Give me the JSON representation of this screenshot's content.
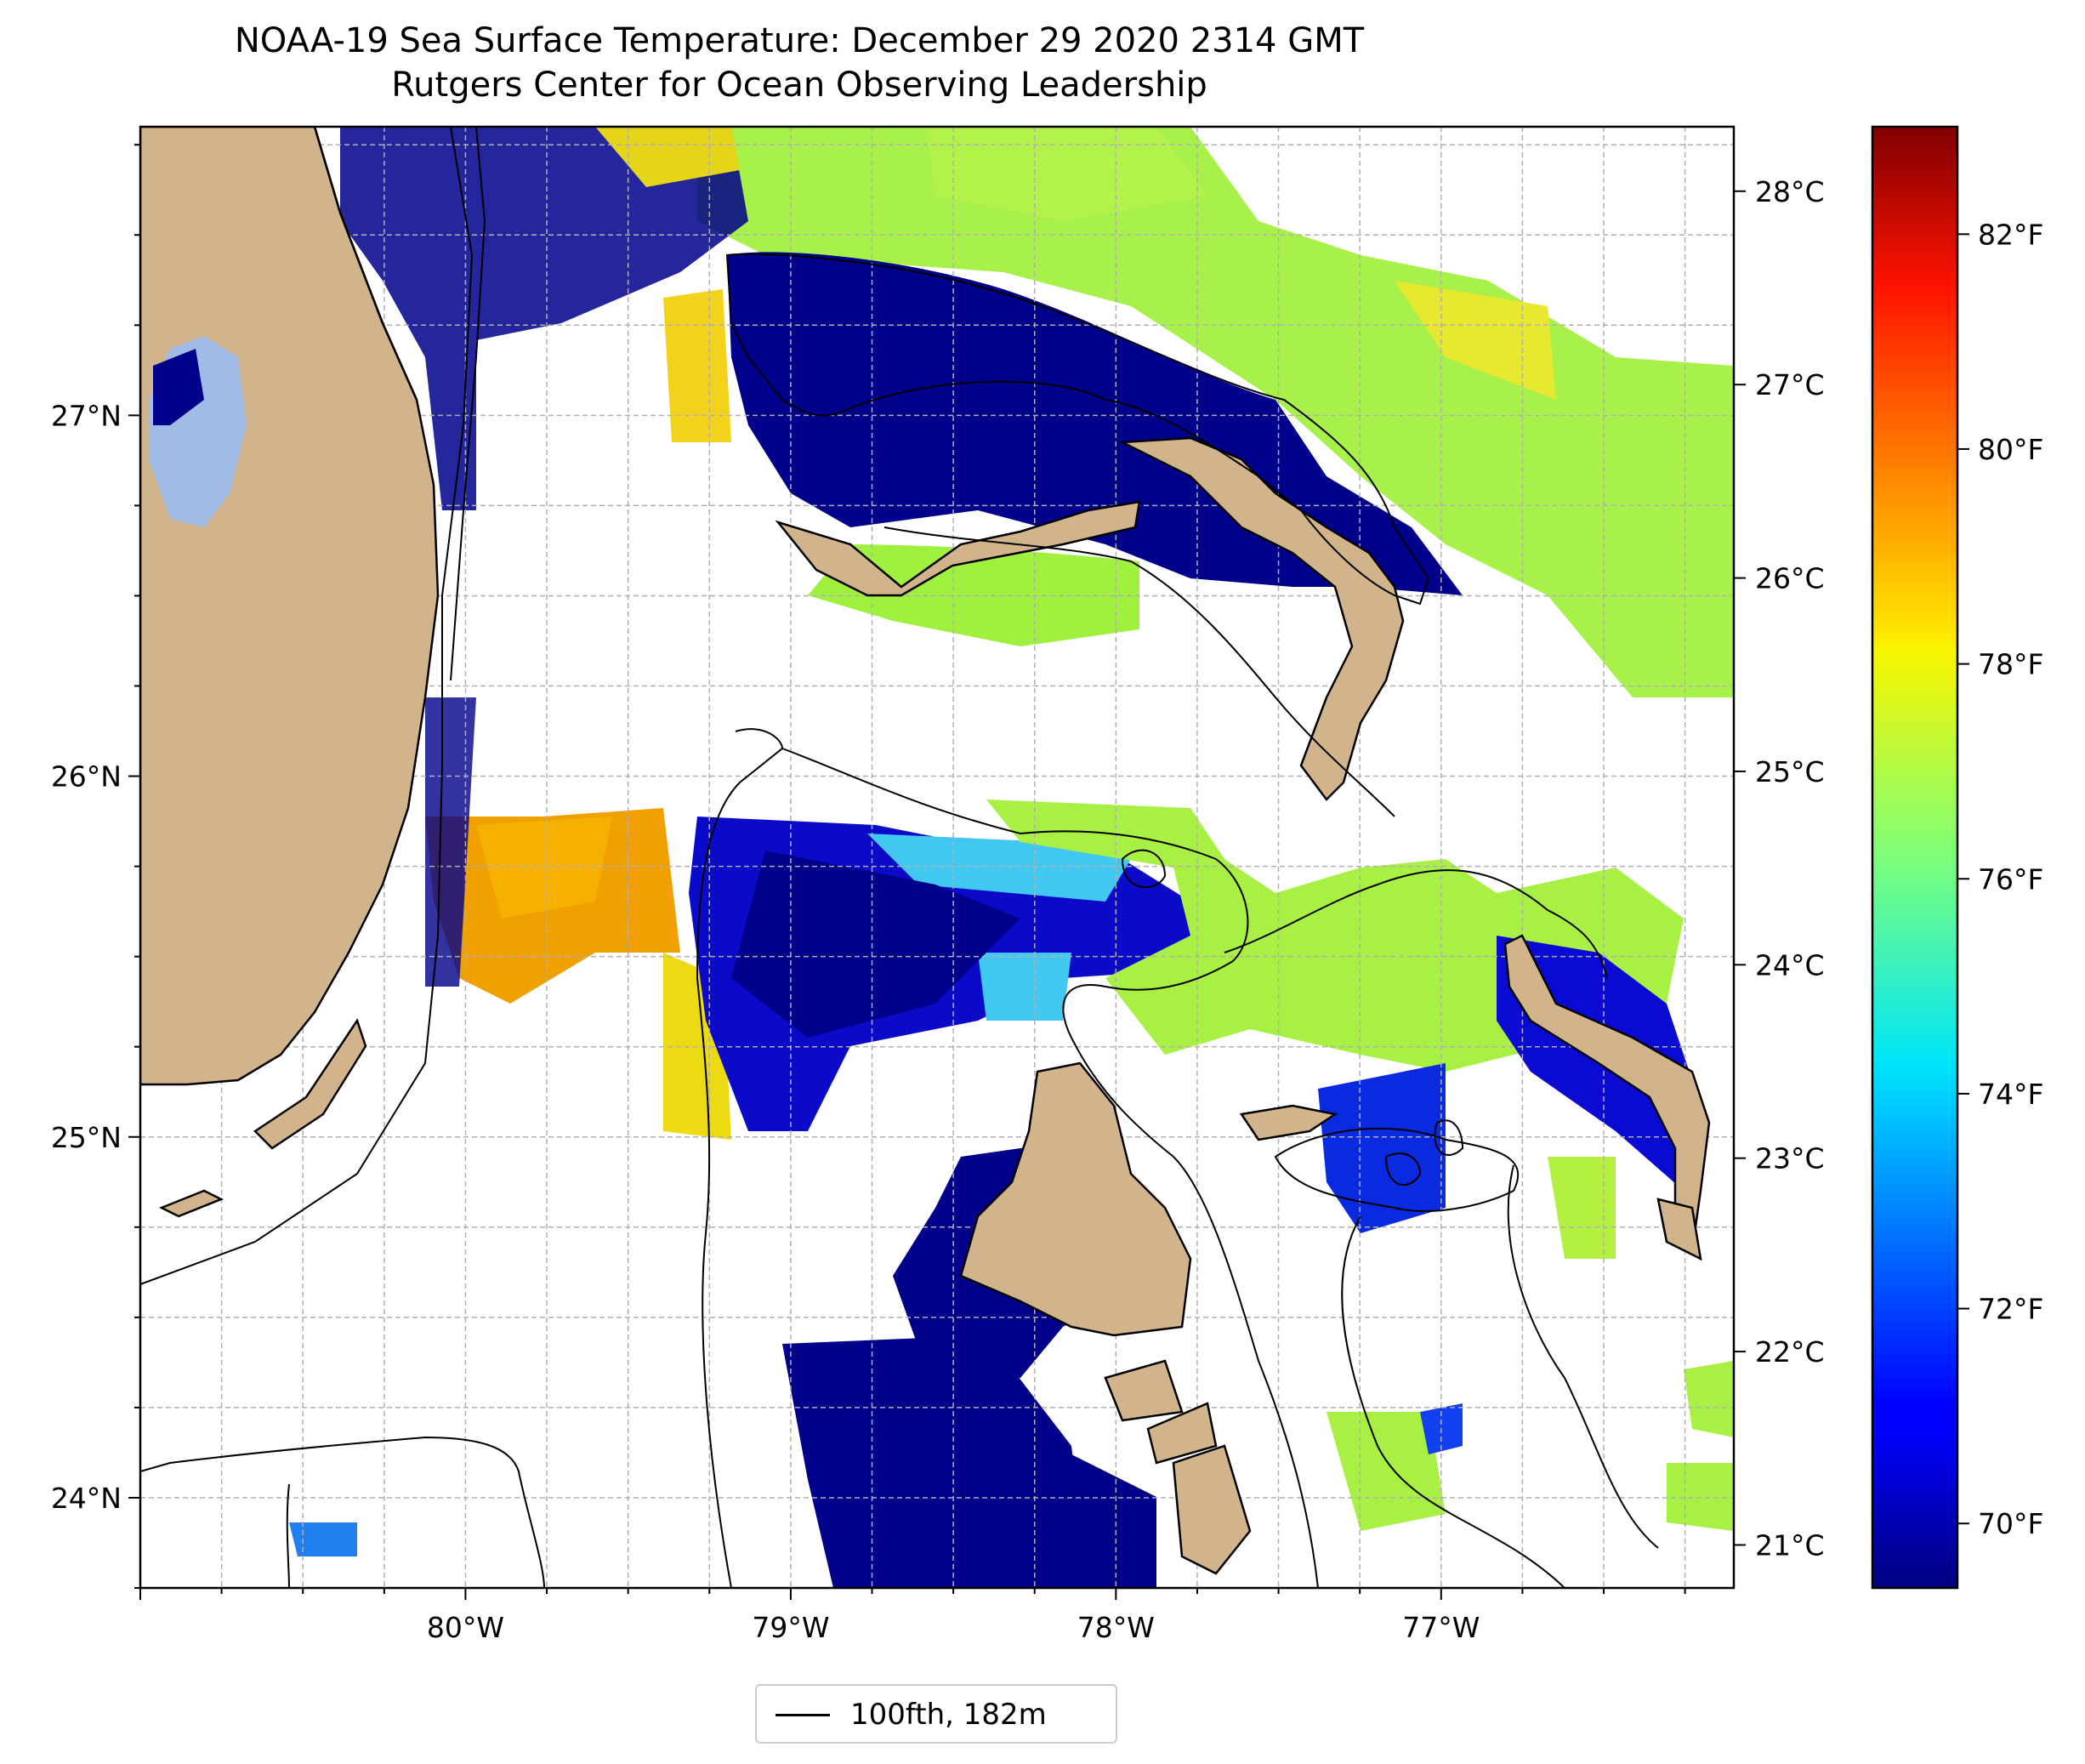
{
  "title": "NOAA-19 Sea Surface Temperature: December 29 2020 2314 GMT",
  "subtitle": "Rutgers Center for Ocean Observing Leadership",
  "map": {
    "lon_range": [
      -81.0,
      -76.1
    ],
    "lat_range": [
      23.75,
      27.8
    ],
    "lon_ticks": [
      {
        "value": -80,
        "label": "80°W"
      },
      {
        "value": -79,
        "label": "79°W"
      },
      {
        "value": -78,
        "label": "78°W"
      },
      {
        "value": -77,
        "label": "77°W"
      }
    ],
    "lat_ticks": [
      {
        "value": 24,
        "label": "24°N"
      },
      {
        "value": 25,
        "label": "25°N"
      },
      {
        "value": 26,
        "label": "26°N"
      },
      {
        "value": 27,
        "label": "27°N"
      }
    ],
    "gridlines": "dashed gray every 0.25°",
    "colors": {
      "land": "#d2b48c",
      "lake": "#a0bce6",
      "warm_shelf": "#f0a800",
      "mid_water": "#9cf040",
      "cold_banks": "#00008b",
      "no_data": "#ffffff"
    }
  },
  "colorbar": {
    "colormap": "jet",
    "fahrenheit_ticks": [
      "70°F",
      "72°F",
      "74°F",
      "76°F",
      "78°F",
      "80°F",
      "82°F"
    ],
    "fahrenheit_values": [
      70,
      72,
      74,
      76,
      78,
      80,
      82
    ],
    "celsius_ticks": [
      "21°C",
      "22°C",
      "23°C",
      "24°C",
      "25°C",
      "26°C",
      "27°C",
      "28°C"
    ],
    "celsius_values": [
      21,
      22,
      23,
      24,
      25,
      26,
      27,
      28
    ],
    "range_f": [
      69.4,
      83.0
    ]
  },
  "legend": {
    "label": "100fth, 182m",
    "placement": "bottom-center"
  }
}
